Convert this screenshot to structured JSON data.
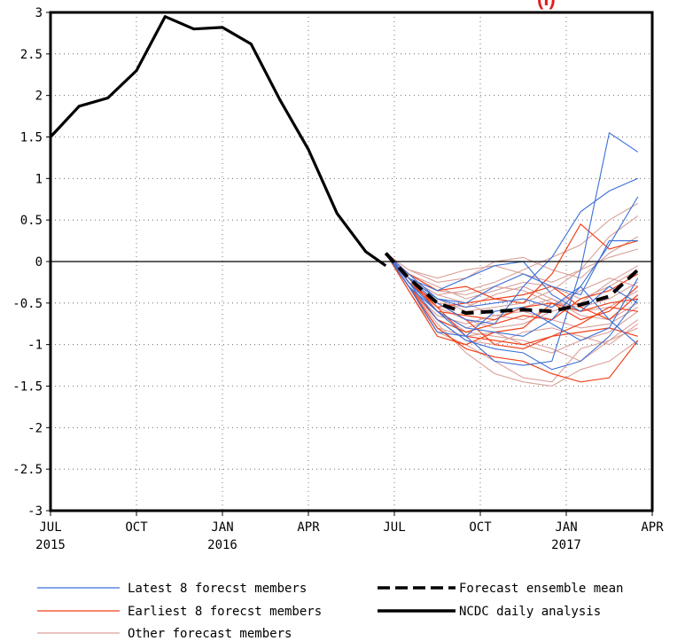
{
  "chart_data": {
    "type": "line",
    "title_fragment": "(I)",
    "ylim": [
      -3,
      3
    ],
    "xlim_months": [
      0,
      21
    ],
    "yticks": [
      "3",
      "2.5",
      "2",
      "1.5",
      "1",
      "0.5",
      "0",
      "-0.5",
      "-1",
      "-1.5",
      "-2",
      "-2.5",
      "-3"
    ],
    "xticks": [
      {
        "m": 0,
        "top": "JUL",
        "bottom": "2015"
      },
      {
        "m": 3,
        "top": "OCT",
        "bottom": ""
      },
      {
        "m": 6,
        "top": "JAN",
        "bottom": "2016"
      },
      {
        "m": 9,
        "top": "APR",
        "bottom": ""
      },
      {
        "m": 12,
        "top": "JUL",
        "bottom": ""
      },
      {
        "m": 15,
        "top": "OCT",
        "bottom": ""
      },
      {
        "m": 18,
        "top": "JAN",
        "bottom": "2017"
      },
      {
        "m": 21,
        "top": "APR",
        "bottom": ""
      }
    ],
    "grid": true,
    "colors": {
      "latest": "#3b6fd6",
      "earliest": "#f0421c",
      "other": "#d9a09a",
      "mean": "#000000",
      "ncdc": "#000000",
      "accent": "#e0201f"
    },
    "ncdc_analysis": {
      "x": [
        0,
        1,
        2,
        3,
        4,
        5,
        6,
        7,
        8,
        9,
        10,
        11,
        11.7
      ],
      "y": [
        1.5,
        1.87,
        1.97,
        2.3,
        2.95,
        2.8,
        2.82,
        2.62,
        1.95,
        1.35,
        0.58,
        0.12,
        -0.05
      ]
    },
    "ensemble_mean": {
      "x": [
        11.7,
        12.5,
        13.5,
        14.5,
        15.5,
        16.5,
        17.5,
        18.5,
        19.5,
        20.5
      ],
      "y": [
        0.1,
        -0.2,
        -0.5,
        -0.62,
        -0.6,
        -0.58,
        -0.6,
        -0.52,
        -0.42,
        -0.1
      ]
    },
    "members_x": [
      11.7,
      12.5,
      13.5,
      14.5,
      15.5,
      16.5,
      17.5,
      18.5,
      19.5,
      20.5
    ],
    "latest_members": [
      [
        0.1,
        -0.25,
        -0.6,
        -0.9,
        -1.2,
        -1.25,
        -1.2,
        -0.1,
        1.55,
        1.32
      ],
      [
        0.1,
        -0.2,
        -0.5,
        -0.7,
        -0.75,
        -0.3,
        0.05,
        0.6,
        0.85,
        1.0
      ],
      [
        0.1,
        -0.3,
        -0.6,
        -0.8,
        -0.85,
        -0.9,
        -0.7,
        -0.3,
        0.2,
        0.78
      ],
      [
        0.1,
        -0.15,
        -0.45,
        -0.5,
        -0.3,
        -0.15,
        -0.3,
        -0.4,
        0.25,
        0.25
      ],
      [
        0.1,
        -0.25,
        -0.7,
        -0.95,
        -1.05,
        -1.1,
        -1.3,
        -1.2,
        -0.9,
        -0.45
      ],
      [
        0.1,
        -0.2,
        -0.35,
        -0.2,
        -0.05,
        0.0,
        -0.4,
        -0.6,
        -0.3,
        -0.5
      ],
      [
        0.1,
        -0.3,
        -0.85,
        -0.9,
        -0.6,
        -0.55,
        -0.75,
        -0.95,
        -0.8,
        -0.2
      ],
      [
        0.1,
        -0.2,
        -0.45,
        -0.55,
        -0.5,
        -0.45,
        -0.55,
        -0.3,
        -0.7,
        -1.0
      ]
    ],
    "earliest_members": [
      [
        0.1,
        -0.3,
        -0.8,
        -1.05,
        -1.15,
        -1.2,
        -1.35,
        -1.45,
        -1.4,
        -0.95
      ],
      [
        0.1,
        -0.2,
        -0.55,
        -0.9,
        -0.95,
        -1.0,
        -0.9,
        -0.85,
        -0.8,
        -0.9
      ],
      [
        0.1,
        -0.25,
        -0.55,
        -0.5,
        -0.45,
        -0.5,
        -0.15,
        0.45,
        0.15,
        0.25
      ],
      [
        0.1,
        -0.15,
        -0.35,
        -0.3,
        -0.45,
        -0.4,
        -0.3,
        -0.55,
        -0.7,
        -0.4
      ],
      [
        0.1,
        -0.35,
        -0.9,
        -1.0,
        -0.85,
        -0.8,
        -0.5,
        -0.7,
        -0.6,
        -0.3
      ],
      [
        0.1,
        -0.2,
        -0.6,
        -0.65,
        -0.7,
        -0.55,
        -0.5,
        -0.6,
        -0.5,
        -0.45
      ],
      [
        0.1,
        -0.3,
        -0.7,
        -0.85,
        -0.75,
        -0.65,
        -0.7,
        -0.45,
        -0.35,
        -0.15
      ],
      [
        0.1,
        -0.25,
        -0.5,
        -0.7,
        -1.0,
        -1.05,
        -0.9,
        -0.75,
        -0.55,
        -0.6
      ]
    ],
    "other_members": [
      [
        0.1,
        -0.2,
        -0.4,
        -0.35,
        -0.25,
        -0.1,
        0.05,
        0.2,
        0.5,
        0.7
      ],
      [
        0.1,
        -0.3,
        -0.75,
        -1.1,
        -1.35,
        -1.45,
        -1.5,
        -1.3,
        -1.2,
        -0.95
      ],
      [
        0.1,
        -0.1,
        -0.25,
        -0.2,
        0.0,
        0.05,
        -0.1,
        -0.2,
        0.1,
        0.3
      ],
      [
        0.1,
        -0.25,
        -0.6,
        -0.85,
        -0.9,
        -0.95,
        -1.05,
        -1.2,
        -0.95,
        -0.7
      ],
      [
        0.1,
        -0.2,
        -0.45,
        -0.6,
        -0.55,
        -0.5,
        -0.35,
        -0.1,
        0.3,
        0.55
      ],
      [
        0.1,
        -0.3,
        -0.65,
        -0.75,
        -0.65,
        -0.6,
        -0.7,
        -0.8,
        -0.75,
        -0.55
      ],
      [
        0.1,
        -0.15,
        -0.3,
        -0.45,
        -0.35,
        -0.25,
        -0.3,
        -0.45,
        -0.3,
        -0.1
      ],
      [
        0.1,
        -0.35,
        -0.85,
        -1.0,
        -1.2,
        -1.4,
        -1.45,
        -1.05,
        -0.95,
        -0.8
      ],
      [
        0.1,
        -0.2,
        -0.5,
        -0.55,
        -0.4,
        -0.3,
        -0.45,
        -0.6,
        -0.55,
        -0.35
      ],
      [
        0.1,
        -0.25,
        -0.55,
        -0.7,
        -0.8,
        -0.75,
        -0.6,
        -0.5,
        -0.25,
        -0.05
      ],
      [
        0.1,
        -0.1,
        -0.2,
        -0.1,
        -0.05,
        -0.15,
        -0.25,
        -0.1,
        0.05,
        0.15
      ],
      [
        0.1,
        -0.3,
        -0.7,
        -0.95,
        -1.0,
        -0.85,
        -0.8,
        -0.9,
        -1.0,
        -0.75
      ],
      [
        0.1,
        -0.2,
        -0.4,
        -0.5,
        -0.65,
        -0.7,
        -0.55,
        -0.35,
        -0.2,
        -0.3
      ],
      [
        0.1,
        -0.25,
        -0.6,
        -0.8,
        -0.7,
        -0.55,
        -0.45,
        -0.65,
        -0.7,
        -0.5
      ],
      [
        0.1,
        -0.15,
        -0.35,
        -0.4,
        -0.3,
        -0.35,
        -0.5,
        -0.55,
        -0.45,
        -0.25
      ],
      [
        0.1,
        -0.3,
        -0.8,
        -0.9,
        -0.85,
        -1.0,
        -1.1,
        -0.95,
        -0.85,
        -0.6
      ]
    ],
    "legend": {
      "latest": "Latest 8 forecst members",
      "earliest": "Earliest 8 forecst members",
      "other": "Other forecast members",
      "mean": "Forecast ensemble mean",
      "ncdc": "NCDC daily analysis"
    }
  }
}
